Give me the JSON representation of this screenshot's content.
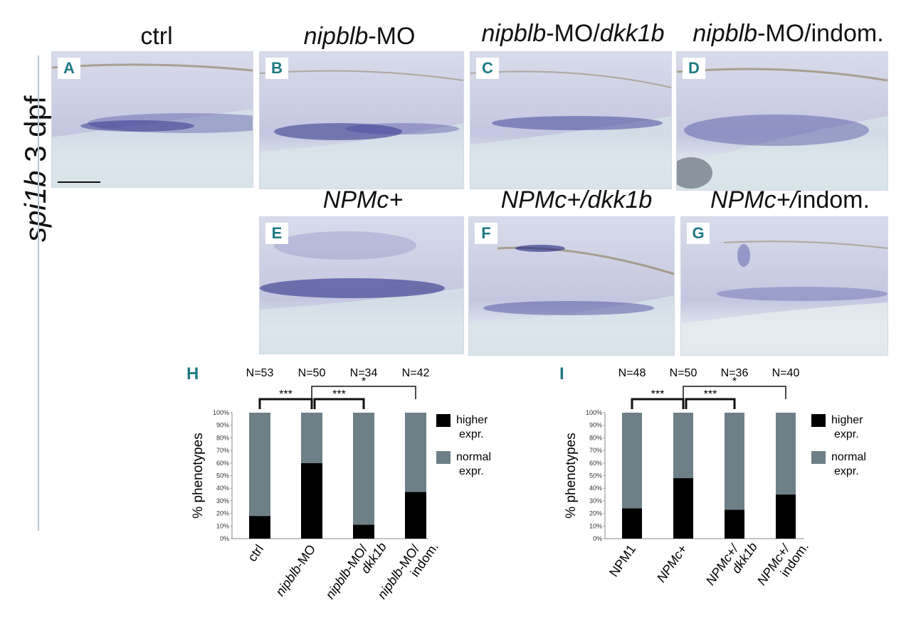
{
  "figure": {
    "side_label": {
      "gene": "spi1b",
      "stage": "3 dpf"
    },
    "panels": [
      {
        "letter": "A",
        "title_parts": [
          {
            "t": "ctrl",
            "i": false
          }
        ]
      },
      {
        "letter": "B",
        "title_parts": [
          {
            "t": "nipblb",
            "i": true
          },
          {
            "t": "-MO",
            "i": false
          }
        ]
      },
      {
        "letter": "C",
        "title_parts": [
          {
            "t": "nipblb",
            "i": true
          },
          {
            "t": "-MO/",
            "i": false
          },
          {
            "t": "dkk1b",
            "i": true
          }
        ]
      },
      {
        "letter": "D",
        "title_parts": [
          {
            "t": "nipblb",
            "i": true
          },
          {
            "t": "-MO/",
            "i": false
          },
          {
            "t": "indom.",
            "i": false
          }
        ]
      },
      {
        "letter": "E",
        "title_parts": [
          {
            "t": "NPMc+",
            "i": true
          }
        ]
      },
      {
        "letter": "F",
        "title_parts": [
          {
            "t": "NPMc+/dkk1b",
            "i": true
          }
        ]
      },
      {
        "letter": "G",
        "title_parts": [
          {
            "t": "NPMc+/",
            "i": true
          },
          {
            "t": "indom.",
            "i": false
          }
        ]
      }
    ]
  },
  "chart_data": [
    {
      "letter": "H",
      "type": "bar",
      "stacked": true,
      "ylabel": "% phenotypes",
      "ylim": [
        0,
        100
      ],
      "yticks": [
        "0%",
        "10%",
        "20%",
        "30%",
        "40%",
        "50%",
        "60%",
        "70%",
        "80%",
        "90%",
        "100%"
      ],
      "categories": [
        [
          {
            "t": "ctrl",
            "i": false
          }
        ],
        [
          {
            "t": "nipblb",
            "i": true
          },
          {
            "t": "-MO",
            "i": false
          }
        ],
        [
          {
            "t": "nipblb",
            "i": true
          },
          {
            "t": "-MO/",
            "i": false
          },
          {
            "t": "|dkk1b",
            "i": true
          }
        ],
        [
          {
            "t": "nipblb",
            "i": true
          },
          {
            "t": "-MO/",
            "i": false
          },
          {
            "t": "|indom.",
            "i": false
          }
        ]
      ],
      "n_labels": [
        "N=53",
        "N=50",
        "N=34",
        "N=42"
      ],
      "series": [
        {
          "name": "higher expr.",
          "legend_lines": [
            "higher",
            "expr."
          ],
          "color": "#000000",
          "values": [
            18,
            60,
            11,
            37
          ]
        },
        {
          "name": "normal expr.",
          "legend_lines": [
            "normal",
            "expr."
          ],
          "color": "#6e8087",
          "values": [
            82,
            40,
            89,
            63
          ]
        }
      ],
      "significance": [
        {
          "from": 0,
          "to": 1,
          "label": "***"
        },
        {
          "from": 1,
          "to": 2,
          "label": "***"
        },
        {
          "from": 1,
          "to": 3,
          "label": "*"
        }
      ]
    },
    {
      "letter": "I",
      "type": "bar",
      "stacked": true,
      "ylabel": "% phenotypes",
      "ylim": [
        0,
        100
      ],
      "yticks": [
        "0%",
        "10%",
        "20%",
        "30%",
        "40%",
        "50%",
        "60%",
        "70%",
        "80%",
        "90%",
        "100%"
      ],
      "categories": [
        [
          {
            "t": "NPM1",
            "i": false
          }
        ],
        [
          {
            "t": "NPMc+",
            "i": true
          }
        ],
        [
          {
            "t": "NPMc+/",
            "i": true
          },
          {
            "t": "|dkk1b",
            "i": true
          }
        ],
        [
          {
            "t": "NPMc+/",
            "i": true
          },
          {
            "t": "|indom.",
            "i": false
          }
        ]
      ],
      "n_labels": [
        "N=48",
        "N=50",
        "N=36",
        "N=40"
      ],
      "series": [
        {
          "name": "higher expr.",
          "legend_lines": [
            "higher",
            "expr."
          ],
          "color": "#000000",
          "values": [
            24,
            48,
            23,
            35
          ]
        },
        {
          "name": "normal expr.",
          "legend_lines": [
            "normal",
            "expr."
          ],
          "color": "#6e8087",
          "values": [
            76,
            52,
            77,
            65
          ]
        }
      ],
      "significance": [
        {
          "from": 0,
          "to": 1,
          "label": "***"
        },
        {
          "from": 1,
          "to": 2,
          "label": "***"
        },
        {
          "from": 1,
          "to": 3,
          "label": "*"
        }
      ]
    }
  ]
}
